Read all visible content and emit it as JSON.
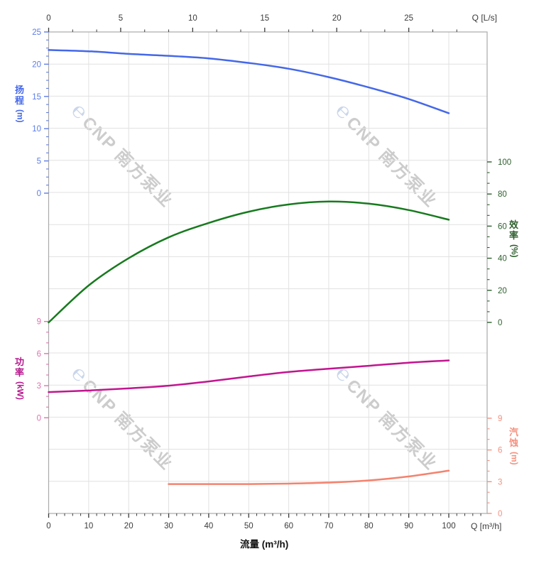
{
  "watermark": {
    "logo": "℮",
    "text": "CNP 南方泵业"
  },
  "chart_data": {
    "type": "line",
    "title": "",
    "x_bottom": {
      "title": "流量 (m³/h)",
      "unit_label": "Q [m³/h]",
      "ticks": [
        0,
        10,
        20,
        30,
        40,
        50,
        60,
        70,
        80,
        90,
        100
      ],
      "minor_step": 2,
      "axis_max": 108,
      "range_note": "flow in m3/h, plot area extends to ~109.5"
    },
    "x_top": {
      "unit_label": "Q [L/s]",
      "ticks": [
        0,
        5,
        10,
        15,
        20,
        25
      ],
      "minor_step": 1.6667,
      "axis_max": 28.4
    },
    "y_axes": [
      {
        "id": "head",
        "label": "扬程",
        "unit": "(m)",
        "side": "left",
        "curve_color": "#4468e8",
        "label_color": "#5b7ce8",
        "title_color": "#4468e8",
        "ticks": [
          25,
          20,
          15,
          10,
          5,
          0
        ],
        "minor_step": 1.25,
        "range": [
          0,
          25
        ]
      },
      {
        "id": "power",
        "label": "功率",
        "unit": "(kW)",
        "side": "left",
        "curve_color": "#c2158f",
        "label_color": "#e071ad",
        "title_color": "#b5198d",
        "ticks": [
          9,
          6,
          3,
          0
        ],
        "minor_step": 1,
        "range": [
          0,
          9
        ]
      },
      {
        "id": "eff",
        "label": "效率",
        "unit": "(%)",
        "side": "right",
        "curve_color": "#177a1e",
        "label_color": "#2e5f2e",
        "title_color": "#2e5f2e",
        "ticks": [
          100,
          80,
          60,
          40,
          20,
          0
        ],
        "minor_step": 6.667,
        "range": [
          0,
          100
        ]
      },
      {
        "id": "npsh",
        "label": "汽蚀",
        "unit": "(m)",
        "side": "right",
        "curve_color": "#f4826d",
        "label_color": "#f5907e",
        "title_color": "#f5907e",
        "ticks": [
          9,
          6,
          3,
          0
        ],
        "minor_step": 1,
        "range": [
          0,
          9
        ]
      }
    ],
    "series": [
      {
        "id": "head-curve",
        "name": "扬程",
        "axis": "head",
        "color": "#4468e8",
        "points": [
          [
            0,
            22.2
          ],
          [
            10,
            22.0
          ],
          [
            20,
            21.6
          ],
          [
            30,
            21.3
          ],
          [
            40,
            20.9
          ],
          [
            50,
            20.2
          ],
          [
            60,
            19.3
          ],
          [
            70,
            18.0
          ],
          [
            80,
            16.4
          ],
          [
            90,
            14.6
          ],
          [
            100,
            12.4
          ]
        ]
      },
      {
        "id": "efficiency-curve",
        "name": "效率",
        "axis": "eff",
        "color": "#177a1e",
        "points": [
          [
            0,
            0
          ],
          [
            10,
            23
          ],
          [
            20,
            40
          ],
          [
            30,
            53
          ],
          [
            40,
            62
          ],
          [
            50,
            69
          ],
          [
            60,
            73.5
          ],
          [
            70,
            75.3
          ],
          [
            80,
            74
          ],
          [
            90,
            70
          ],
          [
            100,
            64
          ]
        ]
      },
      {
        "id": "power-curve",
        "name": "功率",
        "axis": "power",
        "color": "#c2158f",
        "points": [
          [
            0,
            2.4
          ],
          [
            10,
            2.55
          ],
          [
            20,
            2.75
          ],
          [
            30,
            3.0
          ],
          [
            40,
            3.4
          ],
          [
            50,
            3.86
          ],
          [
            60,
            4.28
          ],
          [
            70,
            4.58
          ],
          [
            80,
            4.86
          ],
          [
            90,
            5.15
          ],
          [
            100,
            5.36
          ]
        ]
      },
      {
        "id": "npsh-curve",
        "name": "汽蚀",
        "axis": "npsh",
        "color": "#f4826d",
        "points": [
          [
            30,
            2.78
          ],
          [
            40,
            2.78
          ],
          [
            50,
            2.78
          ],
          [
            60,
            2.82
          ],
          [
            70,
            2.92
          ],
          [
            80,
            3.12
          ],
          [
            90,
            3.5
          ],
          [
            100,
            4.05
          ]
        ]
      }
    ],
    "grid": true,
    "legend": "none"
  }
}
